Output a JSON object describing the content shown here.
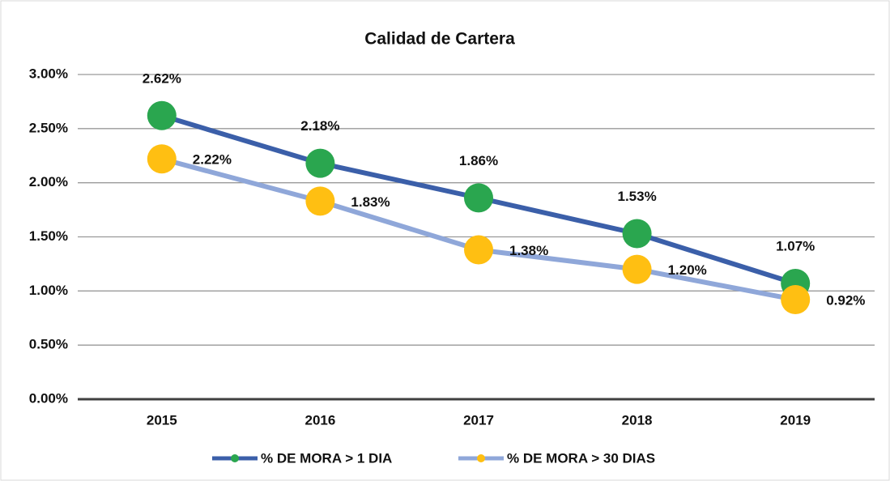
{
  "chart_data": {
    "type": "line",
    "title": "Calidad de Cartera",
    "categories": [
      "2015",
      "2016",
      "2017",
      "2018",
      "2019"
    ],
    "series": [
      {
        "name": "% DE MORA > 1 DIA",
        "color": "#3b5fa9",
        "marker_color": "#2aa64f",
        "values": [
          2.62,
          2.18,
          1.86,
          1.53,
          1.07
        ],
        "value_labels": [
          "2.62%",
          "2.18%",
          "1.86%",
          "1.53%",
          "1.07%"
        ]
      },
      {
        "name": "% DE MORA > 30 DIAS",
        "color": "#8fa7d9",
        "marker_color": "#ffbf12",
        "values": [
          2.22,
          1.83,
          1.38,
          1.2,
          0.92
        ],
        "value_labels": [
          "2.22%",
          "1.83%",
          "1.38%",
          "1.20%",
          "0.92%"
        ]
      }
    ],
    "ylim": [
      0,
      3
    ],
    "yticks": [
      {
        "value": 0,
        "label": "0.00%"
      },
      {
        "value": 0.5,
        "label": "0.50%"
      },
      {
        "value": 1,
        "label": "1.00%"
      },
      {
        "value": 1.5,
        "label": "1.50%"
      },
      {
        "value": 2,
        "label": "2.00%"
      },
      {
        "value": 2.5,
        "label": "2.50%"
      },
      {
        "value": 3,
        "label": "3.00%"
      }
    ],
    "grid": true,
    "legend": "bottom"
  }
}
